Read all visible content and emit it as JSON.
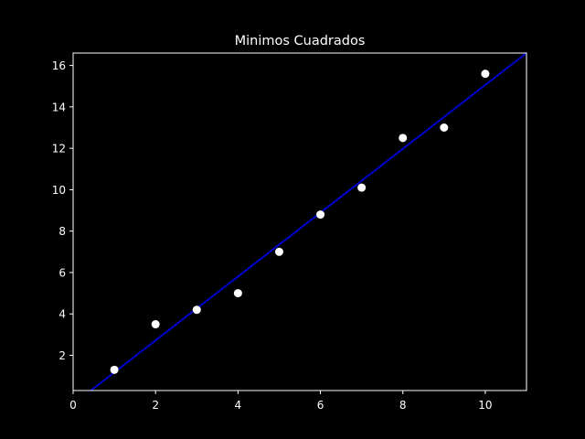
{
  "chart_data": {
    "type": "scatter",
    "title": "Minimos Cuadrados",
    "xlabel": "",
    "ylabel": "",
    "xlim": [
      0,
      11
    ],
    "ylim": [
      0.3,
      16.6
    ],
    "x_ticks": [
      0,
      2,
      4,
      6,
      8,
      10
    ],
    "y_ticks": [
      2,
      4,
      6,
      8,
      10,
      12,
      14,
      16
    ],
    "grid": false,
    "background": "#000000",
    "series": [
      {
        "kind": "scatter",
        "color": "#ffffff",
        "points": [
          {
            "x": 1,
            "y": 1.3
          },
          {
            "x": 2,
            "y": 3.5
          },
          {
            "x": 3,
            "y": 4.2
          },
          {
            "x": 4,
            "y": 5.0
          },
          {
            "x": 5,
            "y": 7.0
          },
          {
            "x": 6,
            "y": 8.8
          },
          {
            "x": 7,
            "y": 10.1
          },
          {
            "x": 8,
            "y": 12.5
          },
          {
            "x": 9,
            "y": 13.0
          },
          {
            "x": 10,
            "y": 15.6
          }
        ]
      },
      {
        "kind": "line",
        "color": "#0000cc",
        "points": [
          {
            "x": 0.43,
            "y": 0.3
          },
          {
            "x": 11,
            "y": 16.6
          }
        ]
      }
    ]
  }
}
